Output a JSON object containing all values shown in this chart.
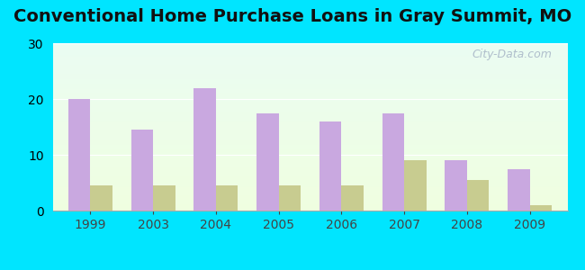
{
  "title": "Conventional Home Purchase Loans in Gray Summit, MO",
  "categories": [
    "1999",
    "2003",
    "2004",
    "2005",
    "2006",
    "2007",
    "2008",
    "2009"
  ],
  "hmda_values": [
    20,
    14.5,
    22,
    17.5,
    16,
    17.5,
    9,
    7.5
  ],
  "pmic_values": [
    4.5,
    4.5,
    4.5,
    4.5,
    4.5,
    9,
    5.5,
    1
  ],
  "hmda_color": "#c9a8e0",
  "pmic_color": "#c8cc90",
  "ylim": [
    0,
    30
  ],
  "yticks": [
    0,
    10,
    20,
    30
  ],
  "background_outer": "#00e5ff",
  "watermark_text": "City-Data.com",
  "bar_width": 0.35,
  "title_fontsize": 14,
  "legend_fontsize": 11
}
